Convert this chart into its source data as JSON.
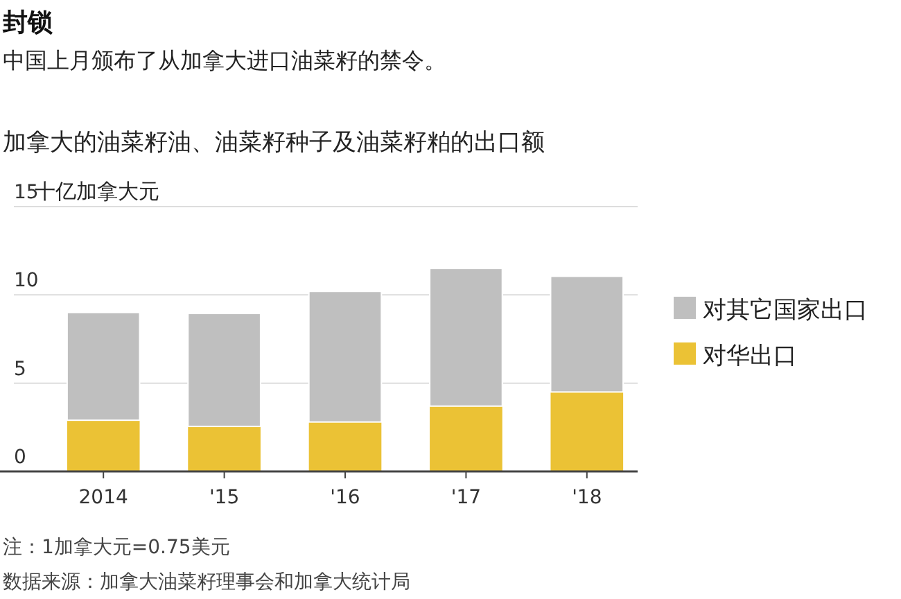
{
  "chart_data": {
    "type": "bar",
    "title": "封锁",
    "subtitle": "中国上月颁布了从加拿大进口油菜籽的禁令。",
    "annotations": [
      "加拿大的油菜籽油、油菜籽种子及油菜籽粕的出口额",
      "注：1加拿大元=0.75美元",
      "数据来源：加拿大油菜籽理事会和加拿大统计局"
    ],
    "ylabel": "十亿加拿大元",
    "categories": [
      "2014",
      "'15",
      "'16",
      "'17",
      "'18"
    ],
    "stacked": true,
    "series": [
      {
        "name": "对华出口",
        "color": "#ebc235",
        "values": [
          2.9,
          2.55,
          2.8,
          3.7,
          4.5
        ]
      },
      {
        "name": "对其它国家出口",
        "color": "#bfbfbf",
        "values": [
          6.1,
          6.4,
          7.4,
          7.8,
          6.55
        ]
      }
    ],
    "ylim": [
      0,
      15
    ],
    "yticks": [
      0,
      5,
      10,
      15
    ],
    "grid": "y",
    "legend": "right"
  }
}
